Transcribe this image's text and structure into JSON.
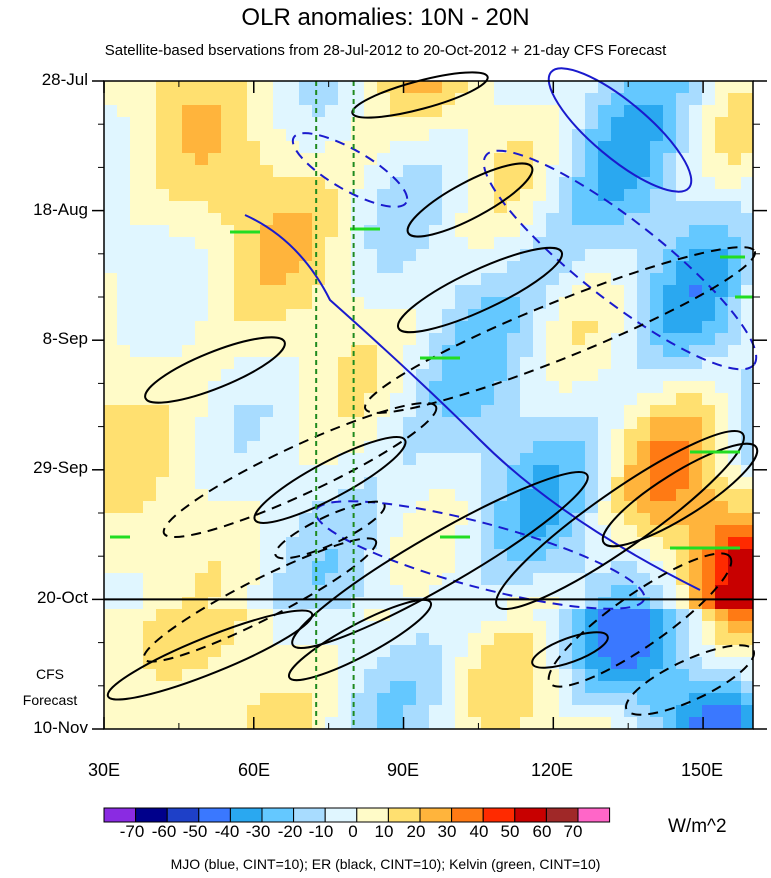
{
  "chart_data": {
    "type": "heatmap",
    "title": "OLR anomalies: 10N - 20N",
    "subtitle": "Satellite-based bservations from 28-Jul-2012 to 20-Oct-2012 + 21-day CFS Forecast",
    "x_ticks": [
      "30E",
      "60E",
      "90E",
      "120E",
      "150E"
    ],
    "x_tick_values": [
      30,
      60,
      90,
      120,
      150
    ],
    "xlim": [
      30,
      160
    ],
    "y_ticks": [
      "28-Jul",
      "18-Aug",
      "8-Sep",
      "29-Sep",
      "20-Oct",
      "10-Nov"
    ],
    "forecast_label": [
      "CFS",
      "Forecast"
    ],
    "forecast_start": "20-Oct",
    "reference_lines_longitude": [
      72.5,
      80
    ],
    "colorbar": {
      "labels": [
        "-70",
        "-60",
        "-50",
        "-40",
        "-30",
        "-20",
        "-10",
        "0",
        "10",
        "20",
        "30",
        "40",
        "50",
        "60",
        "70"
      ],
      "colors": [
        "#8a2be2",
        "#00008b",
        "#1e40c8",
        "#3a78ff",
        "#2aa8f0",
        "#64c8ff",
        "#a8dcff",
        "#e0f6ff",
        "#fffbc8",
        "#ffe070",
        "#ffb43c",
        "#ff7a14",
        "#ff2a00",
        "#c80000",
        "#a02828",
        "#ff66c8"
      ],
      "units": "W/m^2"
    },
    "contour_note": "MJO (blue, CINT=10); ER (black, CINT=10); Kelvin (green, CINT=10)",
    "contour_colors": {
      "mjo": "#1a1acd",
      "er": "#000000",
      "kelvin": "#22dd22"
    }
  }
}
